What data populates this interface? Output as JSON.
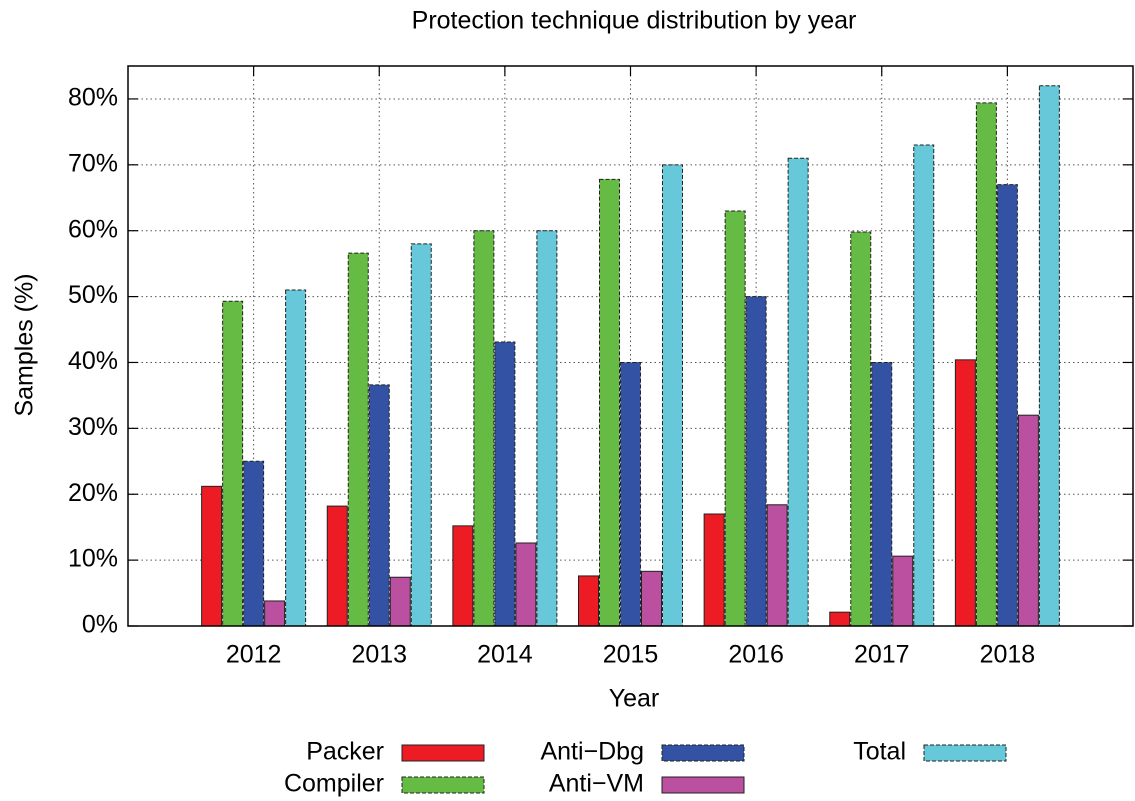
{
  "chart_data": {
    "type": "bar",
    "title": "Protection technique distribution by year",
    "xlabel": "Year",
    "ylabel": "Samples (%)",
    "categories": [
      "2012",
      "2013",
      "2014",
      "2015",
      "2016",
      "2017",
      "2018"
    ],
    "series": [
      {
        "name": "Packer",
        "color": "#ed1c24",
        "dashed": false,
        "values": [
          21.2,
          18.2,
          15.2,
          7.6,
          17,
          2.1,
          40.4
        ]
      },
      {
        "name": "Compiler",
        "color": "#66bb44",
        "dashed": true,
        "values": [
          49.3,
          56.6,
          60,
          67.8,
          63,
          59.8,
          79.4
        ]
      },
      {
        "name": "Anti−Dbg",
        "color": "#3452a4",
        "dashed": true,
        "values": [
          25,
          36.6,
          43.1,
          40,
          50,
          40,
          67
        ]
      },
      {
        "name": "Anti−VM",
        "color": "#bb4fa0",
        "dashed": false,
        "values": [
          3.8,
          7.4,
          12.6,
          8.3,
          18.4,
          10.6,
          32
        ]
      },
      {
        "name": "Total",
        "color": "#66c8d8",
        "dashed": true,
        "values": [
          51,
          58,
          60,
          70,
          71,
          73,
          82
        ]
      }
    ],
    "ylim": [
      0,
      85
    ],
    "yticks": [
      {
        "value": 0,
        "label": "0%"
      },
      {
        "value": 10,
        "label": "10%"
      },
      {
        "value": 20,
        "label": "20%"
      },
      {
        "value": 30,
        "label": "30%"
      },
      {
        "value": 40,
        "label": "40%"
      },
      {
        "value": 50,
        "label": "50%"
      },
      {
        "value": 60,
        "label": "60%"
      },
      {
        "value": 70,
        "label": "70%"
      },
      {
        "value": 80,
        "label": "80%"
      }
    ],
    "grid": true,
    "legend": "bottom"
  }
}
